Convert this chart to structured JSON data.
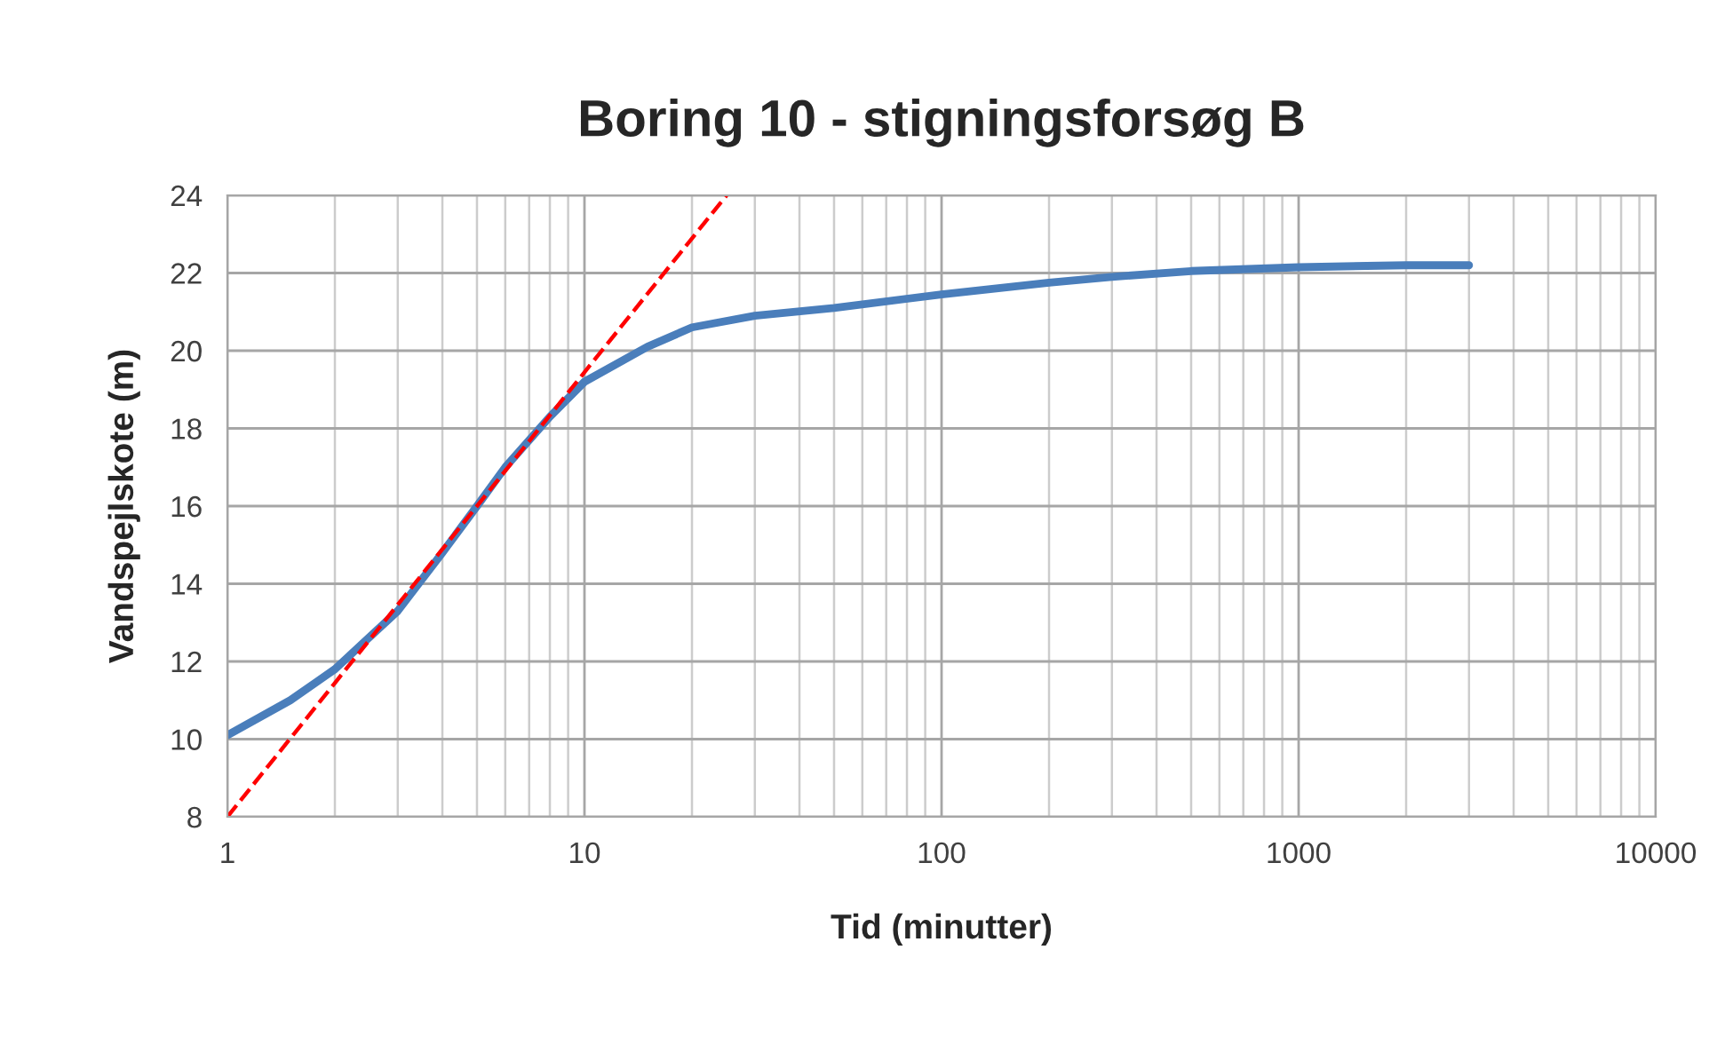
{
  "chart_data": {
    "type": "line",
    "title": "Boring 10 - stigningsforsøg B",
    "xlabel": "Tid (minutter)",
    "ylabel": "Vandspejlskote (m)",
    "log": "x",
    "xlim": [
      1,
      10000
    ],
    "xticks": [
      1,
      10,
      100,
      1000,
      10000
    ],
    "ylim": [
      8,
      24
    ],
    "yticks": [
      8,
      10,
      12,
      14,
      16,
      18,
      20,
      22,
      24
    ],
    "grid": true,
    "series": [
      {
        "color": "#4a7ebb",
        "line_style": "solid",
        "x": [
          1,
          1.5,
          2,
          3,
          4,
          5,
          6,
          8,
          10,
          15,
          20,
          30,
          50,
          100,
          200,
          300,
          500,
          1000,
          2000,
          3000
        ],
        "values": [
          10.1,
          11.0,
          11.8,
          13.3,
          14.8,
          16.0,
          17.0,
          18.3,
          19.2,
          20.1,
          20.6,
          20.9,
          21.1,
          21.45,
          21.75,
          21.9,
          22.05,
          22.15,
          22.2,
          22.2
        ]
      },
      {
        "color": "#ff0000",
        "line_style": "dashed",
        "x": [
          1,
          25
        ],
        "values": [
          8,
          24
        ]
      }
    ]
  }
}
